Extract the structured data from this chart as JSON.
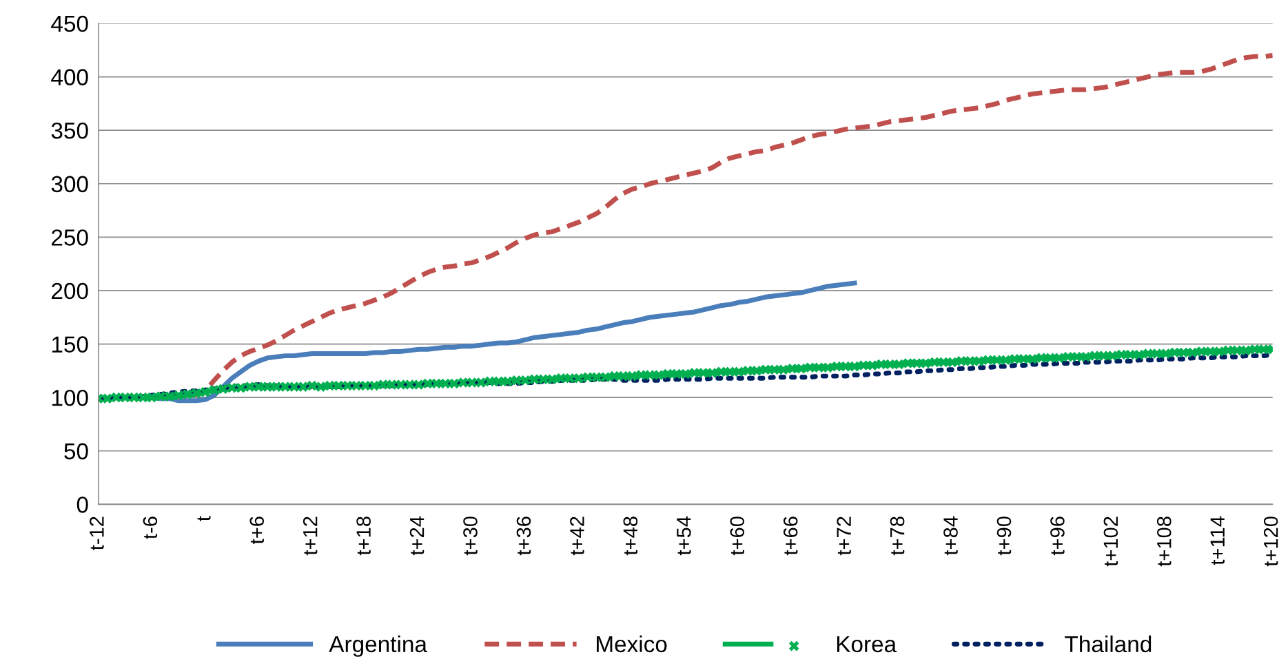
{
  "chart_data": {
    "type": "line",
    "categories": [
      "t-12",
      null,
      null,
      null,
      null,
      null,
      "t-6",
      null,
      null,
      null,
      null,
      null,
      "t",
      null,
      null,
      null,
      null,
      null,
      "t+6",
      null,
      null,
      null,
      null,
      null,
      "t+12",
      null,
      null,
      null,
      null,
      null,
      "t+18",
      null,
      null,
      null,
      null,
      null,
      "t+24",
      null,
      null,
      null,
      null,
      null,
      "t+30",
      null,
      null,
      null,
      null,
      null,
      "t+36",
      null,
      null,
      null,
      null,
      null,
      "t+42",
      null,
      null,
      null,
      null,
      null,
      "t+48",
      null,
      null,
      null,
      null,
      null,
      "t+54",
      null,
      null,
      null,
      null,
      null,
      "t+60",
      null,
      null,
      null,
      null,
      null,
      "t+66",
      null,
      null,
      null,
      null,
      null,
      "t+72",
      null,
      null,
      null,
      null,
      null,
      "t+78",
      null,
      null,
      null,
      null,
      null,
      "t+84",
      null,
      null,
      null,
      null,
      null,
      "t+90",
      null,
      null,
      null,
      null,
      null,
      "t+96",
      null,
      null,
      null,
      null,
      null,
      "t+102",
      null,
      null,
      null,
      null,
      null,
      "t+108",
      null,
      null,
      null,
      null,
      null,
      "t+114",
      null,
      null,
      null,
      null,
      null,
      "t+120"
    ],
    "series": [
      {
        "name": "Argentina",
        "color": "#4a7ebb",
        "line_style": "solid",
        "marker": "none",
        "values": [
          null,
          null,
          null,
          null,
          null,
          100,
          100,
          99,
          99,
          97,
          97,
          97,
          98,
          102,
          110,
          118,
          124,
          130,
          134,
          137,
          138,
          139,
          139,
          140,
          141,
          141,
          141,
          141,
          141,
          141,
          141,
          142,
          142,
          143,
          143,
          144,
          145,
          145,
          146,
          147,
          147,
          148,
          148,
          149,
          150,
          151,
          151,
          152,
          154,
          156,
          157,
          158,
          159,
          160,
          161,
          163,
          164,
          166,
          168,
          170,
          171,
          173,
          175,
          176,
          177,
          178,
          179,
          180,
          182,
          184,
          186,
          187,
          189,
          190,
          192,
          194,
          195,
          196,
          197,
          198,
          200,
          202,
          204,
          205,
          206,
          207,
          null,
          null,
          null,
          null,
          null,
          null,
          null,
          null,
          null,
          null,
          null,
          null,
          null,
          null,
          null,
          null,
          null,
          null,
          null,
          null,
          null,
          null,
          null,
          null,
          null,
          null,
          null,
          null,
          null,
          null,
          null,
          null,
          null,
          null,
          null,
          null,
          null,
          null,
          null,
          null,
          null,
          null,
          null,
          null,
          null,
          null,
          null
        ]
      },
      {
        "name": "Mexico",
        "color": "#c0504d",
        "line_style": "dashed",
        "marker": "none",
        "values": [
          null,
          null,
          null,
          null,
          null,
          null,
          null,
          null,
          101,
          101,
          102,
          103,
          106,
          116,
          125,
          133,
          139,
          143,
          146,
          149,
          153,
          158,
          163,
          167,
          171,
          175,
          179,
          182,
          184,
          186,
          188,
          191,
          194,
          198,
          203,
          208,
          213,
          217,
          220,
          222,
          223,
          225,
          226,
          229,
          232,
          236,
          240,
          245,
          249,
          252,
          254,
          255,
          258,
          261,
          264,
          268,
          272,
          278,
          285,
          291,
          295,
          297,
          300,
          302,
          304,
          306,
          308,
          310,
          312,
          315,
          320,
          324,
          326,
          328,
          330,
          331,
          334,
          336,
          338,
          341,
          344,
          346,
          347,
          349,
          351,
          352,
          353,
          354,
          356,
          358,
          359,
          360,
          361,
          362,
          364,
          366,
          368,
          369,
          370,
          371,
          373,
          375,
          378,
          380,
          382,
          384,
          385,
          386,
          387,
          388,
          388,
          388,
          389,
          390,
          392,
          394,
          396,
          398,
          400,
          402,
          403,
          404,
          404,
          404,
          405,
          407,
          410,
          413,
          416,
          418,
          419,
          419,
          420
        ]
      },
      {
        "name": "Korea",
        "color": "#00b050",
        "line_style": "solid",
        "marker": "cross",
        "values": [
          99,
          99,
          100,
          100,
          100,
          100,
          100,
          101,
          101,
          102,
          103,
          104,
          105,
          107,
          108,
          109,
          109,
          110,
          110,
          110,
          110,
          110,
          110,
          110,
          111,
          110,
          111,
          111,
          111,
          111,
          111,
          111,
          112,
          112,
          112,
          112,
          112,
          113,
          113,
          113,
          113,
          114,
          114,
          114,
          115,
          115,
          115,
          116,
          116,
          117,
          117,
          117,
          118,
          118,
          118,
          119,
          119,
          119,
          120,
          120,
          120,
          121,
          121,
          121,
          122,
          122,
          122,
          123,
          123,
          123,
          124,
          124,
          124,
          125,
          125,
          126,
          126,
          126,
          127,
          127,
          128,
          128,
          128,
          129,
          129,
          129,
          130,
          130,
          131,
          131,
          131,
          132,
          132,
          132,
          133,
          133,
          133,
          134,
          134,
          134,
          135,
          135,
          135,
          136,
          136,
          136,
          137,
          137,
          137,
          138,
          138,
          138,
          139,
          139,
          139,
          140,
          140,
          140,
          141,
          141,
          141,
          142,
          142,
          142,
          143,
          143,
          143,
          144,
          144,
          144,
          145,
          145,
          145
        ]
      },
      {
        "name": "Thailand",
        "color": "#002060",
        "line_style": "dotted",
        "marker": "none",
        "values": [
          98,
          99,
          100,
          100,
          100,
          101,
          102,
          103,
          104,
          105,
          106,
          106,
          107,
          108,
          109,
          110,
          111,
          111,
          112,
          111,
          111,
          110,
          110,
          110,
          110,
          110,
          110,
          110,
          110,
          111,
          111,
          111,
          111,
          111,
          112,
          112,
          112,
          112,
          113,
          113,
          113,
          113,
          113,
          114,
          114,
          113,
          113,
          113,
          114,
          114,
          115,
          115,
          116,
          116,
          116,
          116,
          117,
          117,
          117,
          116,
          116,
          116,
          116,
          116,
          117,
          117,
          117,
          117,
          117,
          118,
          118,
          118,
          118,
          118,
          118,
          118,
          119,
          119,
          119,
          119,
          119,
          120,
          120,
          120,
          120,
          121,
          121,
          122,
          122,
          123,
          123,
          124,
          124,
          125,
          125,
          126,
          126,
          127,
          127,
          128,
          128,
          129,
          129,
          130,
          130,
          131,
          131,
          131,
          132,
          132,
          132,
          133,
          133,
          133,
          134,
          134,
          134,
          135,
          135,
          135,
          136,
          136,
          136,
          137,
          137,
          137,
          138,
          138,
          138,
          139,
          139,
          139,
          140
        ]
      }
    ],
    "ylim": [
      0,
      450
    ],
    "yticks": [
      0,
      50,
      100,
      150,
      200,
      250,
      300,
      350,
      400,
      450
    ],
    "grid": "y",
    "legend": "bottom"
  }
}
